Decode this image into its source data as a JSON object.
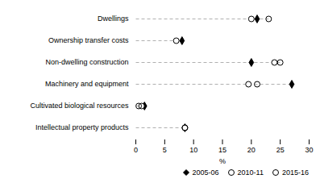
{
  "chart_data": {
    "type": "dot",
    "categories": [
      "Dwellings",
      "Ownership transfer costs",
      "Non-dwelling construction",
      "Machinery and equipment",
      "Cultivated biological resources",
      "Intellectual property products"
    ],
    "series": [
      {
        "name": "2005-06",
        "color": "#000000",
        "marker": "diamond",
        "values": [
          21.0,
          8.0,
          20.0,
          27.0,
          1.5,
          8.5
        ]
      },
      {
        "name": "2010-11",
        "color": "#000000",
        "marker": "circle",
        "values": [
          20.0,
          7.0,
          24.0,
          19.5,
          1.0,
          8.5
        ]
      },
      {
        "name": "2015-16",
        "color": "#000000",
        "marker": "circle_open",
        "values": [
          23.0,
          null,
          25.0,
          21.0,
          0.5,
          8.5
        ]
      }
    ],
    "guide_values": [
      23.0,
      8.0,
      25.0,
      27.0,
      1.5,
      8.5
    ],
    "color": "#b0b0b0",
    "line_style": "dashed",
    "xlabel": "%",
    "xlim": [
      0,
      30
    ],
    "xticks": [
      0,
      5,
      10,
      15,
      20,
      25,
      30
    ],
    "grid": false,
    "legend": "lower right"
  }
}
